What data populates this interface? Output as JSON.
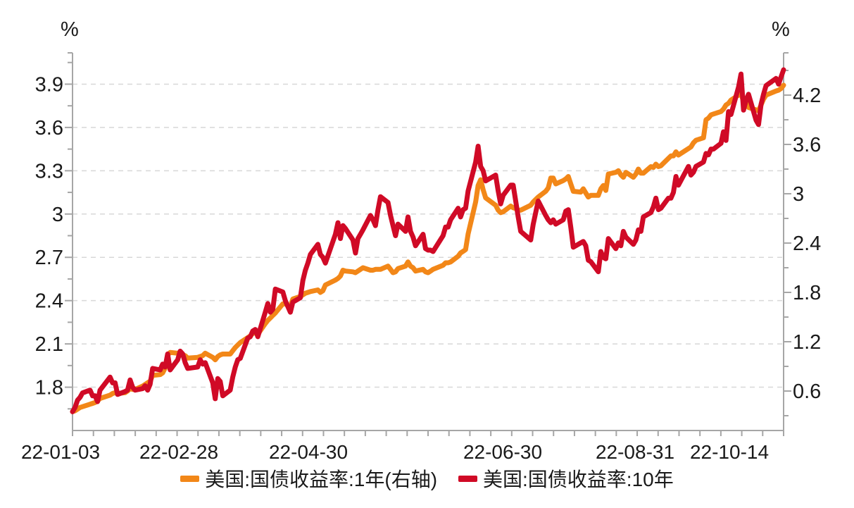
{
  "chart_data": {
    "type": "line",
    "unit_left": "%",
    "unit_right": "%",
    "x_tick_labels": [
      "22-01-03",
      "22-02-28",
      "22-04-30",
      "22-06-30",
      "22-08-31",
      "22-10-14"
    ],
    "x_label_days": [
      0,
      56,
      117,
      178,
      240,
      284
    ],
    "x_range_days": [
      0,
      284
    ],
    "left_axis": {
      "ticks": [
        1.8,
        2.1,
        2.4,
        2.7,
        3,
        3.3,
        3.6,
        3.9
      ],
      "min": 1.5,
      "max": 4.117,
      "minor_step": 0.15
    },
    "right_axis": {
      "ticks": [
        0.6,
        1.2,
        1.8,
        2.4,
        3,
        3.6,
        4.2
      ],
      "min": 0.12,
      "max": 4.714,
      "minor_step": 0.3
    },
    "grid": {
      "color": "#D8D8D8",
      "dash": "7,6"
    },
    "axis_color": "#A6A6A6",
    "label_color": "#1a1a1a",
    "legend_position": "bottom-center",
    "x_days": [
      0,
      1,
      2,
      3,
      4,
      7,
      8,
      9,
      10,
      11,
      15,
      16,
      17,
      18,
      21,
      22,
      23,
      24,
      25,
      28,
      29,
      30,
      31,
      32,
      35,
      36,
      37,
      38,
      39,
      42,
      43,
      44,
      45,
      46,
      50,
      51,
      52,
      53,
      56,
      57,
      58,
      59,
      60,
      63,
      64,
      65,
      66,
      67,
      70,
      71,
      72,
      73,
      74,
      77,
      78,
      79,
      80,
      81,
      84,
      85,
      86,
      87,
      88,
      91,
      92,
      93,
      94,
      95,
      98,
      99,
      100,
      101,
      105,
      106,
      107,
      108,
      109,
      112,
      113,
      114,
      115,
      116,
      119,
      120,
      121,
      122,
      123,
      126,
      127,
      128,
      129,
      130,
      133,
      134,
      135,
      136,
      137,
      140,
      141,
      142,
      143,
      144,
      148,
      149,
      150,
      151,
      154,
      155,
      156,
      157,
      158,
      161,
      162,
      163,
      164,
      165,
      169,
      170,
      171,
      172,
      175,
      176,
      177,
      178,
      179,
      183,
      184,
      185,
      186,
      189,
      190,
      191,
      192,
      193,
      196,
      197,
      198,
      199,
      200,
      203,
      204,
      205,
      206,
      207,
      210,
      211,
      212,
      213,
      214,
      217,
      218,
      219,
      220,
      221,
      224,
      225,
      226,
      227,
      228,
      231,
      232,
      233,
      234,
      235,
      238,
      239,
      240,
      241,
      242,
      246,
      247,
      248,
      249,
      252,
      253,
      254,
      255,
      256,
      259,
      260,
      261,
      262,
      263,
      266,
      267,
      268,
      269,
      270,
      273,
      274,
      275,
      276,
      277,
      281,
      282,
      283,
      284
    ],
    "series": [
      {
        "name": "美国:国债收益率:1年(右轴)",
        "axis": "right",
        "color": "#F28718",
        "values": [
          0.35,
          0.36,
          0.38,
          0.4,
          0.41,
          0.44,
          0.45,
          0.46,
          0.48,
          0.51,
          0.55,
          0.57,
          0.58,
          0.57,
          0.58,
          0.6,
          0.63,
          0.62,
          0.62,
          0.66,
          0.68,
          0.7,
          0.72,
          0.79,
          0.8,
          0.82,
          0.88,
          1.04,
          1.07,
          1.06,
          1.06,
          1.04,
          1.03,
          1.0,
          1.01,
          1.02,
          1.03,
          1.06,
          1.01,
          0.98,
          1.02,
          1.04,
          1.05,
          1.05,
          1.09,
          1.13,
          1.16,
          1.19,
          1.25,
          1.27,
          1.3,
          1.31,
          1.29,
          1.42,
          1.46,
          1.49,
          1.52,
          1.55,
          1.66,
          1.66,
          1.64,
          1.63,
          1.72,
          1.75,
          1.77,
          1.79,
          1.8,
          1.81,
          1.83,
          1.8,
          1.82,
          1.89,
          1.95,
          1.97,
          2.0,
          2.07,
          2.06,
          2.05,
          2.04,
          2.06,
          2.08,
          2.1,
          2.07,
          2.07,
          2.08,
          2.08,
          2.08,
          2.12,
          2.08,
          2.04,
          2.05,
          2.09,
          2.12,
          2.17,
          2.12,
          2.1,
          2.06,
          2.08,
          2.05,
          2.04,
          2.06,
          2.08,
          2.13,
          2.16,
          2.16,
          2.17,
          2.24,
          2.28,
          2.3,
          2.32,
          2.51,
          2.9,
          3.1,
          3.17,
          3.05,
          2.95,
          2.86,
          2.8,
          2.77,
          2.78,
          2.85,
          2.83,
          2.82,
          2.8,
          2.8,
          2.86,
          2.9,
          2.93,
          2.96,
          3.03,
          3.07,
          3.19,
          3.19,
          3.12,
          3.16,
          3.18,
          3.21,
          3.12,
          3.03,
          3.02,
          3.06,
          3.01,
          2.96,
          2.98,
          2.98,
          3.06,
          3.1,
          3.04,
          3.24,
          3.26,
          3.28,
          3.23,
          3.2,
          3.26,
          3.2,
          3.24,
          3.3,
          3.25,
          3.25,
          3.33,
          3.32,
          3.36,
          3.33,
          3.34,
          3.43,
          3.46,
          3.46,
          3.51,
          3.47,
          3.55,
          3.57,
          3.62,
          3.65,
          3.68,
          3.9,
          3.92,
          3.96,
          3.97,
          4.0,
          4.03,
          4.08,
          4.1,
          4.14,
          4.2,
          4.22,
          4.12,
          4.14,
          4.05,
          4.02,
          4.01,
          4.08,
          4.15,
          4.2,
          4.25,
          4.26,
          4.28,
          4.32
        ]
      },
      {
        "name": "美国:国债收益率:10年",
        "axis": "left",
        "color": "#D00A26",
        "values": [
          1.63,
          1.66,
          1.71,
          1.73,
          1.76,
          1.78,
          1.74,
          1.74,
          1.7,
          1.78,
          1.87,
          1.83,
          1.83,
          1.75,
          1.77,
          1.78,
          1.85,
          1.8,
          1.78,
          1.79,
          1.81,
          1.78,
          1.82,
          1.93,
          1.92,
          1.96,
          1.94,
          2.03,
          1.92,
          1.99,
          2.05,
          2.03,
          1.97,
          1.93,
          1.94,
          1.99,
          1.96,
          1.97,
          1.83,
          1.72,
          1.86,
          1.84,
          1.74,
          1.78,
          1.87,
          1.94,
          1.99,
          2.0,
          2.14,
          2.15,
          2.19,
          2.2,
          2.15,
          2.32,
          2.38,
          2.32,
          2.34,
          2.48,
          2.46,
          2.4,
          2.36,
          2.32,
          2.39,
          2.42,
          2.54,
          2.61,
          2.66,
          2.72,
          2.79,
          2.72,
          2.7,
          2.66,
          2.86,
          2.94,
          2.83,
          2.92,
          2.9,
          2.82,
          2.73,
          2.83,
          2.86,
          2.89,
          2.99,
          2.96,
          2.92,
          3.03,
          3.12,
          3.08,
          2.99,
          2.92,
          2.85,
          2.93,
          2.88,
          2.98,
          2.88,
          2.84,
          2.78,
          2.86,
          2.76,
          2.75,
          2.75,
          2.74,
          2.85,
          2.91,
          2.91,
          2.96,
          3.04,
          2.98,
          3.03,
          3.04,
          3.16,
          3.36,
          3.47,
          3.33,
          3.3,
          3.23,
          3.27,
          3.16,
          3.07,
          3.13,
          3.2,
          3.2,
          3.09,
          2.98,
          2.88,
          2.82,
          2.93,
          3.01,
          3.09,
          2.99,
          2.96,
          2.94,
          2.96,
          2.93,
          2.96,
          3.02,
          3.03,
          2.91,
          2.77,
          2.8,
          2.81,
          2.78,
          2.68,
          2.67,
          2.6,
          2.74,
          2.7,
          2.69,
          2.83,
          2.76,
          2.8,
          2.78,
          2.88,
          2.84,
          2.79,
          2.82,
          2.89,
          2.88,
          2.98,
          3.01,
          3.05,
          3.11,
          3.03,
          3.04,
          3.11,
          3.11,
          3.15,
          3.26,
          3.2,
          3.33,
          3.27,
          3.29,
          3.33,
          3.36,
          3.42,
          3.41,
          3.45,
          3.45,
          3.49,
          3.57,
          3.51,
          3.71,
          3.69,
          3.88,
          3.97,
          3.72,
          3.79,
          3.83,
          3.65,
          3.62,
          3.76,
          3.83,
          3.89,
          3.94,
          3.9,
          3.95,
          4.0
        ]
      }
    ]
  }
}
